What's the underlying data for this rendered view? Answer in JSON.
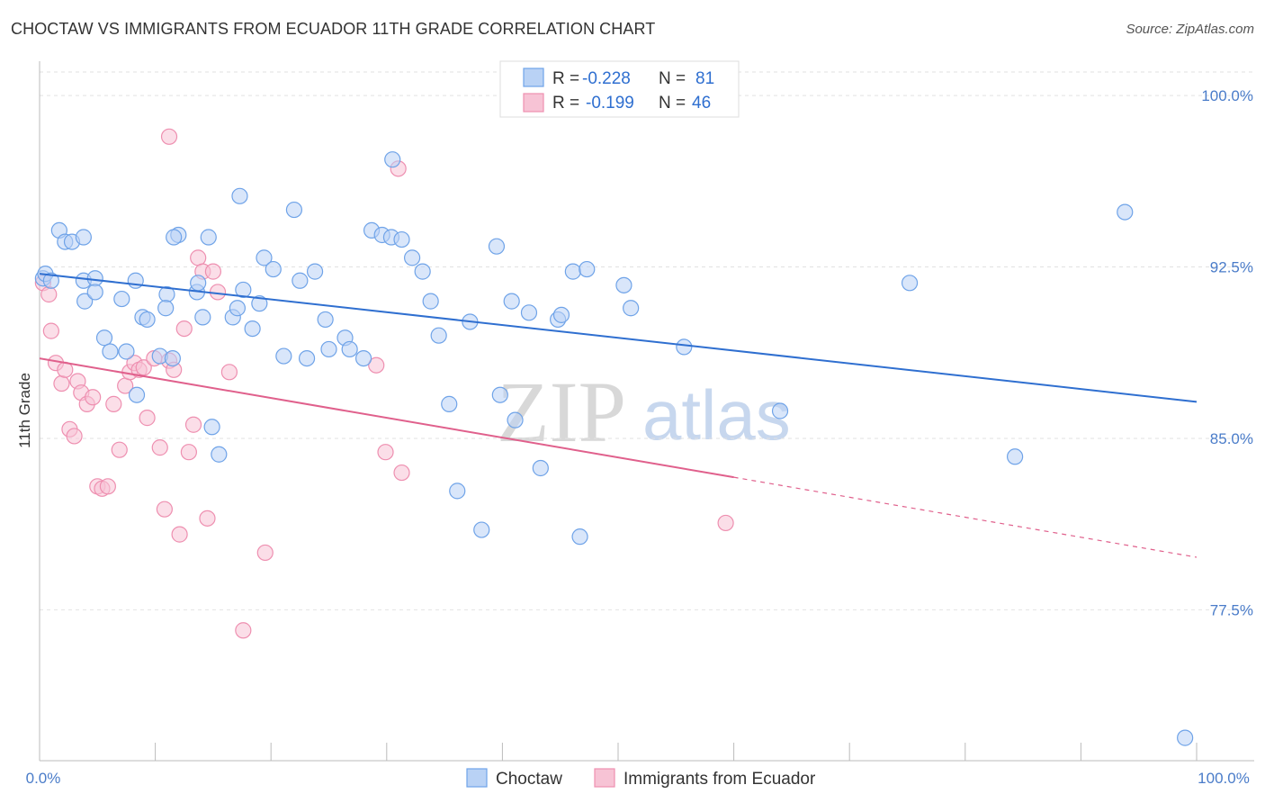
{
  "title": "CHOCTAW VS IMMIGRANTS FROM ECUADOR 11TH GRADE CORRELATION CHART",
  "source": "Source: ZipAtlas.com",
  "watermark": {
    "zip": "ZIP",
    "atlas": "atlas"
  },
  "colors": {
    "blue": "#6fa3e8",
    "blue_fill": "#b9d2f5",
    "blue_line": "#2f6fd0",
    "pink": "#ee8fb0",
    "pink_fill": "#f7c3d5",
    "pink_line": "#e0608c",
    "axis_text": "#4a7cc9"
  },
  "stats_legend": [
    {
      "r_label": "R =",
      "r_value": "-0.228",
      "n_label": "N =",
      "n_value": "81"
    },
    {
      "r_label": "R =",
      "r_value": "-0.199",
      "n_label": "N =",
      "n_value": "46"
    }
  ],
  "bottom_legend": [
    "Choctaw",
    "Immigrants from Ecuador"
  ],
  "chart_data": {
    "type": "scatter",
    "title": "CHOCTAW VS IMMIGRANTS FROM ECUADOR 11TH GRADE CORRELATION CHART",
    "xlabel": "",
    "ylabel": "11th Grade",
    "xlim": [
      0,
      100
    ],
    "ylim": [
      70.9,
      101.5
    ],
    "x_ticks_labels": [
      "0.0%",
      "100.0%"
    ],
    "y_ticks": [
      77.5,
      85.0,
      92.5,
      100.0
    ],
    "y_tick_labels": [
      "77.5%",
      "85.0%",
      "92.5%",
      "100.0%"
    ],
    "grid": true,
    "series": [
      {
        "name": "Choctaw",
        "color": "#6fa3e8",
        "trend": {
          "x": [
            0,
            100
          ],
          "y": [
            92.2,
            86.6
          ]
        },
        "points": [
          [
            0.3,
            92.0
          ],
          [
            0.5,
            92.2
          ],
          [
            1.0,
            91.9
          ],
          [
            1.7,
            94.1
          ],
          [
            2.2,
            93.6
          ],
          [
            2.8,
            93.6
          ],
          [
            3.8,
            93.8
          ],
          [
            3.8,
            91.9
          ],
          [
            3.9,
            91.0
          ],
          [
            4.8,
            92.0
          ],
          [
            4.8,
            91.4
          ],
          [
            7.1,
            91.1
          ],
          [
            5.6,
            89.4
          ],
          [
            6.1,
            88.8
          ],
          [
            7.5,
            88.8
          ],
          [
            8.4,
            86.9
          ],
          [
            8.9,
            90.3
          ],
          [
            8.3,
            91.9
          ],
          [
            9.3,
            90.2
          ],
          [
            10.4,
            88.6
          ],
          [
            11.5,
            88.5
          ],
          [
            11.0,
            91.3
          ],
          [
            10.9,
            90.7
          ],
          [
            12.0,
            93.9
          ],
          [
            11.6,
            93.8
          ],
          [
            13.6,
            91.4
          ],
          [
            14.1,
            90.3
          ],
          [
            14.6,
            93.8
          ],
          [
            13.7,
            91.8
          ],
          [
            14.9,
            85.5
          ],
          [
            15.5,
            84.3
          ],
          [
            16.7,
            90.3
          ],
          [
            17.1,
            90.7
          ],
          [
            17.3,
            95.6
          ],
          [
            18.4,
            89.8
          ],
          [
            19.0,
            90.9
          ],
          [
            17.6,
            91.5
          ],
          [
            19.4,
            92.9
          ],
          [
            20.2,
            92.4
          ],
          [
            22.0,
            95.0
          ],
          [
            21.1,
            88.6
          ],
          [
            22.5,
            91.9
          ],
          [
            23.8,
            92.3
          ],
          [
            23.1,
            88.5
          ],
          [
            24.7,
            90.2
          ],
          [
            25.0,
            88.9
          ],
          [
            26.4,
            89.4
          ],
          [
            26.8,
            88.9
          ],
          [
            28.7,
            94.1
          ],
          [
            28.0,
            88.5
          ],
          [
            29.6,
            93.9
          ],
          [
            30.4,
            93.8
          ],
          [
            30.5,
            97.2
          ],
          [
            31.3,
            93.7
          ],
          [
            32.2,
            92.9
          ],
          [
            33.1,
            92.3
          ],
          [
            33.8,
            91.0
          ],
          [
            34.5,
            89.5
          ],
          [
            35.4,
            86.5
          ],
          [
            36.1,
            82.7
          ],
          [
            37.2,
            90.1
          ],
          [
            38.2,
            81.0
          ],
          [
            39.5,
            93.4
          ],
          [
            40.8,
            91.0
          ],
          [
            41.1,
            85.8
          ],
          [
            42.3,
            90.5
          ],
          [
            39.8,
            86.9
          ],
          [
            43.3,
            83.7
          ],
          [
            44.8,
            90.2
          ],
          [
            46.7,
            80.7
          ],
          [
            45.1,
            90.4
          ],
          [
            46.1,
            92.3
          ],
          [
            47.3,
            92.4
          ],
          [
            50.5,
            91.7
          ],
          [
            51.1,
            90.7
          ],
          [
            55.7,
            89.0
          ],
          [
            64.0,
            86.2
          ],
          [
            75.2,
            91.8
          ],
          [
            84.3,
            84.2
          ],
          [
            93.8,
            94.9
          ],
          [
            99.0,
            71.9
          ]
        ]
      },
      {
        "name": "Immigrants from Ecuador",
        "color": "#ee8fb0",
        "trend": {
          "x": [
            0,
            60
          ],
          "y": [
            88.5,
            83.3
          ]
        },
        "trend_dashed": {
          "x": [
            60,
            100
          ],
          "y": [
            83.3,
            79.8
          ]
        },
        "points": [
          [
            0.3,
            91.8
          ],
          [
            0.8,
            91.3
          ],
          [
            1.0,
            89.7
          ],
          [
            1.4,
            88.3
          ],
          [
            1.9,
            87.4
          ],
          [
            2.2,
            88.0
          ],
          [
            2.6,
            85.4
          ],
          [
            3.0,
            85.1
          ],
          [
            3.3,
            87.5
          ],
          [
            3.6,
            87.0
          ],
          [
            4.1,
            86.5
          ],
          [
            4.6,
            86.8
          ],
          [
            5.0,
            82.9
          ],
          [
            5.4,
            82.8
          ],
          [
            5.9,
            82.9
          ],
          [
            6.4,
            86.5
          ],
          [
            6.9,
            84.5
          ],
          [
            7.4,
            87.3
          ],
          [
            7.8,
            87.9
          ],
          [
            8.2,
            88.3
          ],
          [
            8.6,
            88.0
          ],
          [
            9.0,
            88.1
          ],
          [
            9.3,
            85.9
          ],
          [
            9.9,
            88.5
          ],
          [
            10.4,
            84.6
          ],
          [
            10.8,
            81.9
          ],
          [
            11.2,
            88.4
          ],
          [
            11.6,
            88.0
          ],
          [
            12.1,
            80.8
          ],
          [
            12.5,
            89.8
          ],
          [
            12.9,
            84.4
          ],
          [
            13.3,
            85.6
          ],
          [
            13.7,
            92.9
          ],
          [
            14.1,
            92.3
          ],
          [
            14.5,
            81.5
          ],
          [
            15.0,
            92.3
          ],
          [
            15.4,
            91.4
          ],
          [
            16.4,
            87.9
          ],
          [
            17.6,
            76.6
          ],
          [
            29.1,
            88.2
          ],
          [
            31.0,
            96.8
          ],
          [
            31.3,
            83.5
          ],
          [
            29.9,
            84.4
          ],
          [
            19.5,
            80.0
          ],
          [
            59.3,
            81.3
          ],
          [
            11.2,
            98.2
          ]
        ]
      }
    ]
  }
}
